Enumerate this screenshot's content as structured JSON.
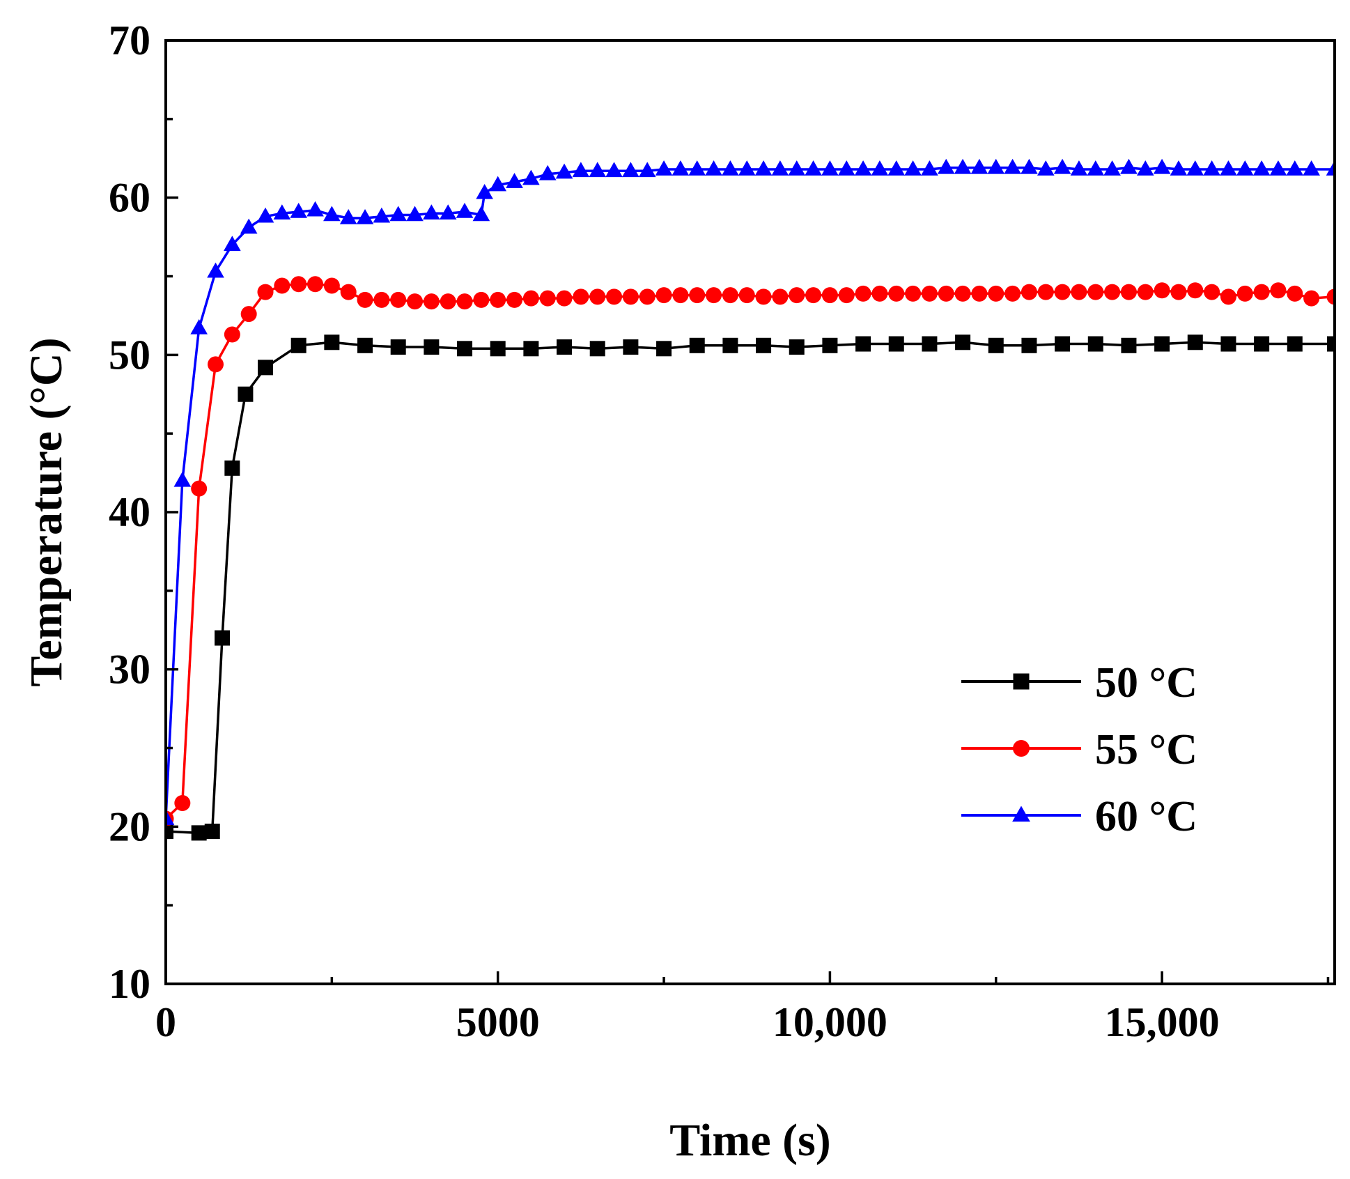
{
  "chart_data": {
    "type": "line",
    "title": "",
    "xlabel": "Time (s)",
    "ylabel": "Temperature (°C)",
    "xlim": [
      0,
      17600
    ],
    "ylim": [
      10,
      70
    ],
    "x_ticks": [
      0,
      5000,
      10000,
      15000
    ],
    "x_tick_labels": [
      "0",
      "5000",
      "10,000",
      "15,000"
    ],
    "y_ticks": [
      10,
      20,
      30,
      40,
      50,
      60,
      70
    ],
    "y_tick_labels": [
      "10",
      "20",
      "30",
      "40",
      "50",
      "60",
      "70"
    ],
    "grid": false,
    "legend_position": "bottom-right",
    "series": [
      {
        "name": "50 °C",
        "color": "#000000",
        "marker": "square",
        "x": [
          0,
          500,
          700,
          850,
          1000,
          1200,
          1500,
          2000,
          2500,
          3000,
          3500,
          4000,
          4500,
          5000,
          5500,
          6000,
          6500,
          7000,
          7500,
          8000,
          8500,
          9000,
          9500,
          10000,
          10500,
          11000,
          11500,
          12000,
          12500,
          13000,
          13500,
          14000,
          14500,
          15000,
          15500,
          16000,
          16500,
          17000,
          17600
        ],
        "y": [
          19.7,
          19.6,
          19.7,
          32.0,
          42.8,
          47.5,
          49.2,
          50.6,
          50.8,
          50.6,
          50.5,
          50.5,
          50.4,
          50.4,
          50.4,
          50.5,
          50.4,
          50.5,
          50.4,
          50.6,
          50.6,
          50.6,
          50.5,
          50.6,
          50.7,
          50.7,
          50.7,
          50.8,
          50.6,
          50.6,
          50.7,
          50.7,
          50.6,
          50.7,
          50.8,
          50.7,
          50.7,
          50.7,
          50.7
        ]
      },
      {
        "name": "55 °C",
        "color": "#ff0000",
        "marker": "circle",
        "x": [
          0,
          250,
          500,
          750,
          1000,
          1250,
          1500,
          1750,
          2000,
          2250,
          2500,
          2750,
          3000,
          3250,
          3500,
          3750,
          4000,
          4250,
          4500,
          4750,
          5000,
          5250,
          5500,
          5750,
          6000,
          6250,
          6500,
          6750,
          7000,
          7250,
          7500,
          7750,
          8000,
          8250,
          8500,
          8750,
          9000,
          9250,
          9500,
          9750,
          10000,
          10250,
          10500,
          10750,
          11000,
          11250,
          11500,
          11750,
          12000,
          12250,
          12500,
          12750,
          13000,
          13250,
          13500,
          13750,
          14000,
          14250,
          14500,
          14750,
          15000,
          15250,
          15500,
          15750,
          16000,
          16250,
          16500,
          16750,
          17000,
          17250,
          17600
        ],
        "y": [
          20.5,
          21.5,
          41.5,
          49.4,
          51.3,
          52.6,
          54.0,
          54.4,
          54.5,
          54.5,
          54.4,
          54.0,
          53.5,
          53.5,
          53.5,
          53.4,
          53.4,
          53.4,
          53.4,
          53.5,
          53.5,
          53.5,
          53.6,
          53.6,
          53.6,
          53.7,
          53.7,
          53.7,
          53.7,
          53.7,
          53.8,
          53.8,
          53.8,
          53.8,
          53.8,
          53.8,
          53.7,
          53.7,
          53.8,
          53.8,
          53.8,
          53.8,
          53.9,
          53.9,
          53.9,
          53.9,
          53.9,
          53.9,
          53.9,
          53.9,
          53.9,
          53.9,
          54.0,
          54.0,
          54.0,
          54.0,
          54.0,
          54.0,
          54.0,
          54.0,
          54.1,
          54.0,
          54.1,
          54.0,
          53.7,
          53.9,
          54.0,
          54.1,
          53.9,
          53.6,
          53.7
        ]
      },
      {
        "name": "60 °C",
        "color": "#0000ff",
        "marker": "triangle",
        "x": [
          0,
          250,
          500,
          750,
          1000,
          1250,
          1500,
          1750,
          2000,
          2250,
          2500,
          2750,
          3000,
          3250,
          3500,
          3750,
          4000,
          4250,
          4500,
          4750,
          4800,
          5000,
          5250,
          5500,
          5750,
          6000,
          6250,
          6500,
          6750,
          7000,
          7250,
          7500,
          7750,
          8000,
          8250,
          8500,
          8750,
          9000,
          9250,
          9500,
          9750,
          10000,
          10250,
          10500,
          10750,
          11000,
          11250,
          11500,
          11750,
          12000,
          12250,
          12500,
          12750,
          13000,
          13250,
          13500,
          13750,
          14000,
          14250,
          14500,
          14750,
          15000,
          15250,
          15500,
          15750,
          16000,
          16250,
          16500,
          16750,
          17000,
          17250,
          17600
        ],
        "y": [
          20.5,
          42.0,
          51.7,
          55.3,
          57.0,
          58.1,
          58.8,
          59.0,
          59.1,
          59.2,
          58.9,
          58.7,
          58.7,
          58.8,
          58.9,
          58.9,
          59.0,
          59.0,
          59.1,
          58.9,
          60.3,
          60.8,
          61.0,
          61.2,
          61.5,
          61.6,
          61.7,
          61.7,
          61.7,
          61.7,
          61.7,
          61.8,
          61.8,
          61.8,
          61.8,
          61.8,
          61.8,
          61.8,
          61.8,
          61.8,
          61.8,
          61.8,
          61.8,
          61.8,
          61.8,
          61.8,
          61.8,
          61.8,
          61.9,
          61.9,
          61.9,
          61.9,
          61.9,
          61.9,
          61.8,
          61.9,
          61.8,
          61.8,
          61.8,
          61.9,
          61.8,
          61.9,
          61.8,
          61.8,
          61.8,
          61.8,
          61.8,
          61.8,
          61.8,
          61.8,
          61.8,
          61.8
        ]
      }
    ]
  }
}
